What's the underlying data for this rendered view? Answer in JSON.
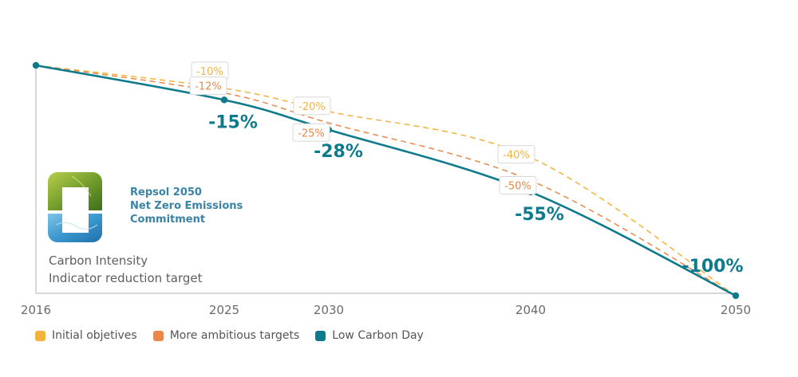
{
  "colors": {
    "initial": "#f2b33d",
    "ambitious": "#e8884a",
    "low_carbon": "#0e7b8c"
  },
  "logo": {
    "lines": [
      "Repsol 2050",
      "Net Zero Emissions",
      "Commitment"
    ]
  },
  "subtitle": {
    "line1": "Carbon Intensity",
    "line2": "Indicator reduction target"
  },
  "chart_data": {
    "type": "line",
    "title": "Repsol 2050 Net Zero Emissions Commitment",
    "ylabel": "Carbon Intensity Indicator reduction target",
    "xlabel": "",
    "x": [
      2016,
      2025,
      2030,
      2040,
      2050
    ],
    "x_tick_labels": [
      "2016",
      "2025",
      "2030",
      "2040",
      "2050"
    ],
    "ylim": [
      -100,
      0
    ],
    "series": [
      {
        "name": "Initial objetives",
        "style": "dashed",
        "points": [
          {
            "x": 2016,
            "y": 0
          },
          {
            "x": 2025,
            "y": -10,
            "label": "-10%"
          },
          {
            "x": 2030,
            "y": -20,
            "label": "-20%"
          },
          {
            "x": 2040,
            "y": -40,
            "label": "-40%"
          },
          {
            "x": 2050,
            "y": -100
          }
        ]
      },
      {
        "name": "More ambitious targets",
        "style": "dashed",
        "points": [
          {
            "x": 2016,
            "y": 0
          },
          {
            "x": 2025,
            "y": -12,
            "label": "-12%"
          },
          {
            "x": 2030,
            "y": -25,
            "label": "-25%"
          },
          {
            "x": 2040,
            "y": -50,
            "label": "-50%"
          },
          {
            "x": 2050,
            "y": -100
          }
        ]
      },
      {
        "name": "Low Carbon Day",
        "style": "solid",
        "points": [
          {
            "x": 2016,
            "y": 0
          },
          {
            "x": 2025,
            "y": -15,
            "label": "-15%"
          },
          {
            "x": 2030,
            "y": -28,
            "label": "-28%"
          },
          {
            "x": 2040,
            "y": -55,
            "label": "-55%"
          },
          {
            "x": 2050,
            "y": -100,
            "label": "-100%"
          }
        ]
      }
    ],
    "legend": [
      "Initial objetives",
      "More ambitious targets",
      "Low Carbon Day"
    ],
    "legend_position": "bottom-left"
  }
}
